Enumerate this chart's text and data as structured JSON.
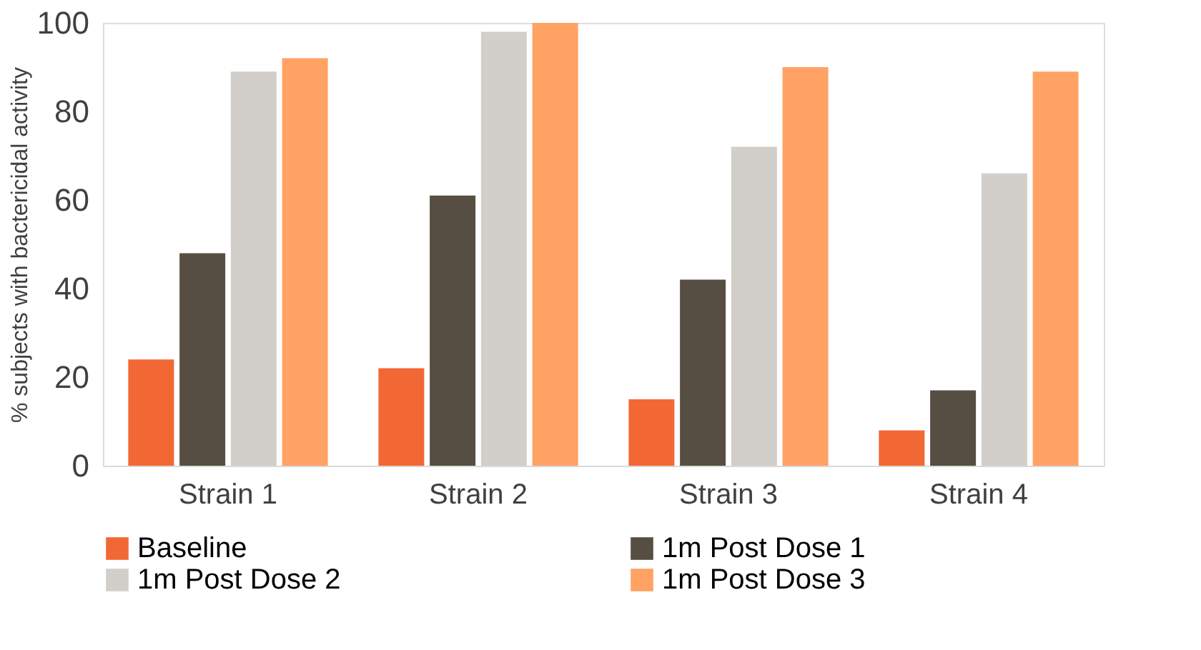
{
  "chart_data": {
    "type": "bar",
    "ylabel": "% subjects with bactericidal activity",
    "categories": [
      "Strain 1",
      "Strain 2",
      "Strain 3",
      "Strain 4"
    ],
    "series": [
      {
        "name": "Baseline",
        "color": "#f26835",
        "values": [
          24,
          22,
          15,
          8
        ]
      },
      {
        "name": "1m Post Dose 1",
        "color": "#574e43",
        "values": [
          48,
          61,
          42,
          17
        ]
      },
      {
        "name": "1m Post Dose 2",
        "color": "#d2cfcb",
        "values": [
          89,
          98,
          72,
          66
        ]
      },
      {
        "name": "1m Post Dose 3",
        "color": "#ffa264",
        "values": [
          92,
          100,
          90,
          89
        ]
      }
    ],
    "ylim": [
      0,
      100
    ],
    "yticks": [
      0,
      20,
      40,
      60,
      80,
      100
    ],
    "grid": false,
    "legend": "bottom"
  }
}
